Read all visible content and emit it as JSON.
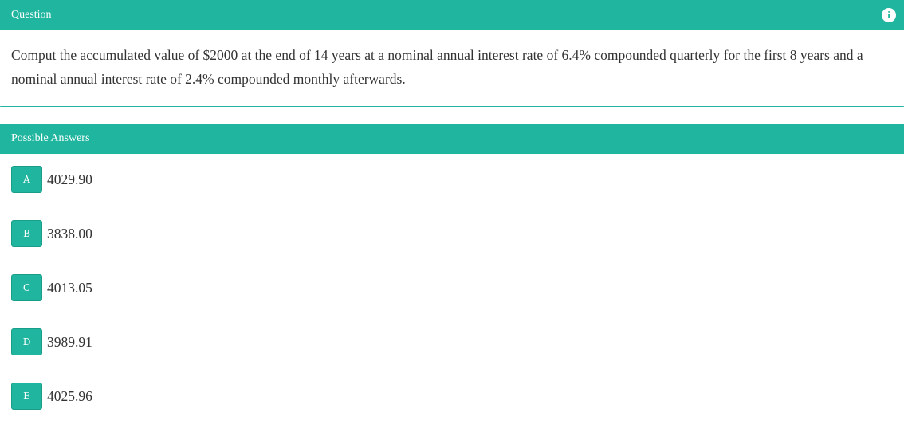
{
  "question": {
    "header": "Question",
    "info_icon": "info-circle-icon",
    "text": "Comput the accumulated value of $2000 at the end of 14 years at a nominal annual interest rate of 6.4% compounded quarterly for the first 8 years and a nominal annual interest rate of 2.4% compounded monthly afterwards."
  },
  "answers": {
    "header": "Possible Answers",
    "items": [
      {
        "letter": "A",
        "value": "4029.90"
      },
      {
        "letter": "B",
        "value": "3838.00"
      },
      {
        "letter": "C",
        "value": "4013.05"
      },
      {
        "letter": "D",
        "value": "3989.91"
      },
      {
        "letter": "E",
        "value": "4025.96"
      }
    ]
  },
  "colors": {
    "accent": "#20b59e"
  }
}
